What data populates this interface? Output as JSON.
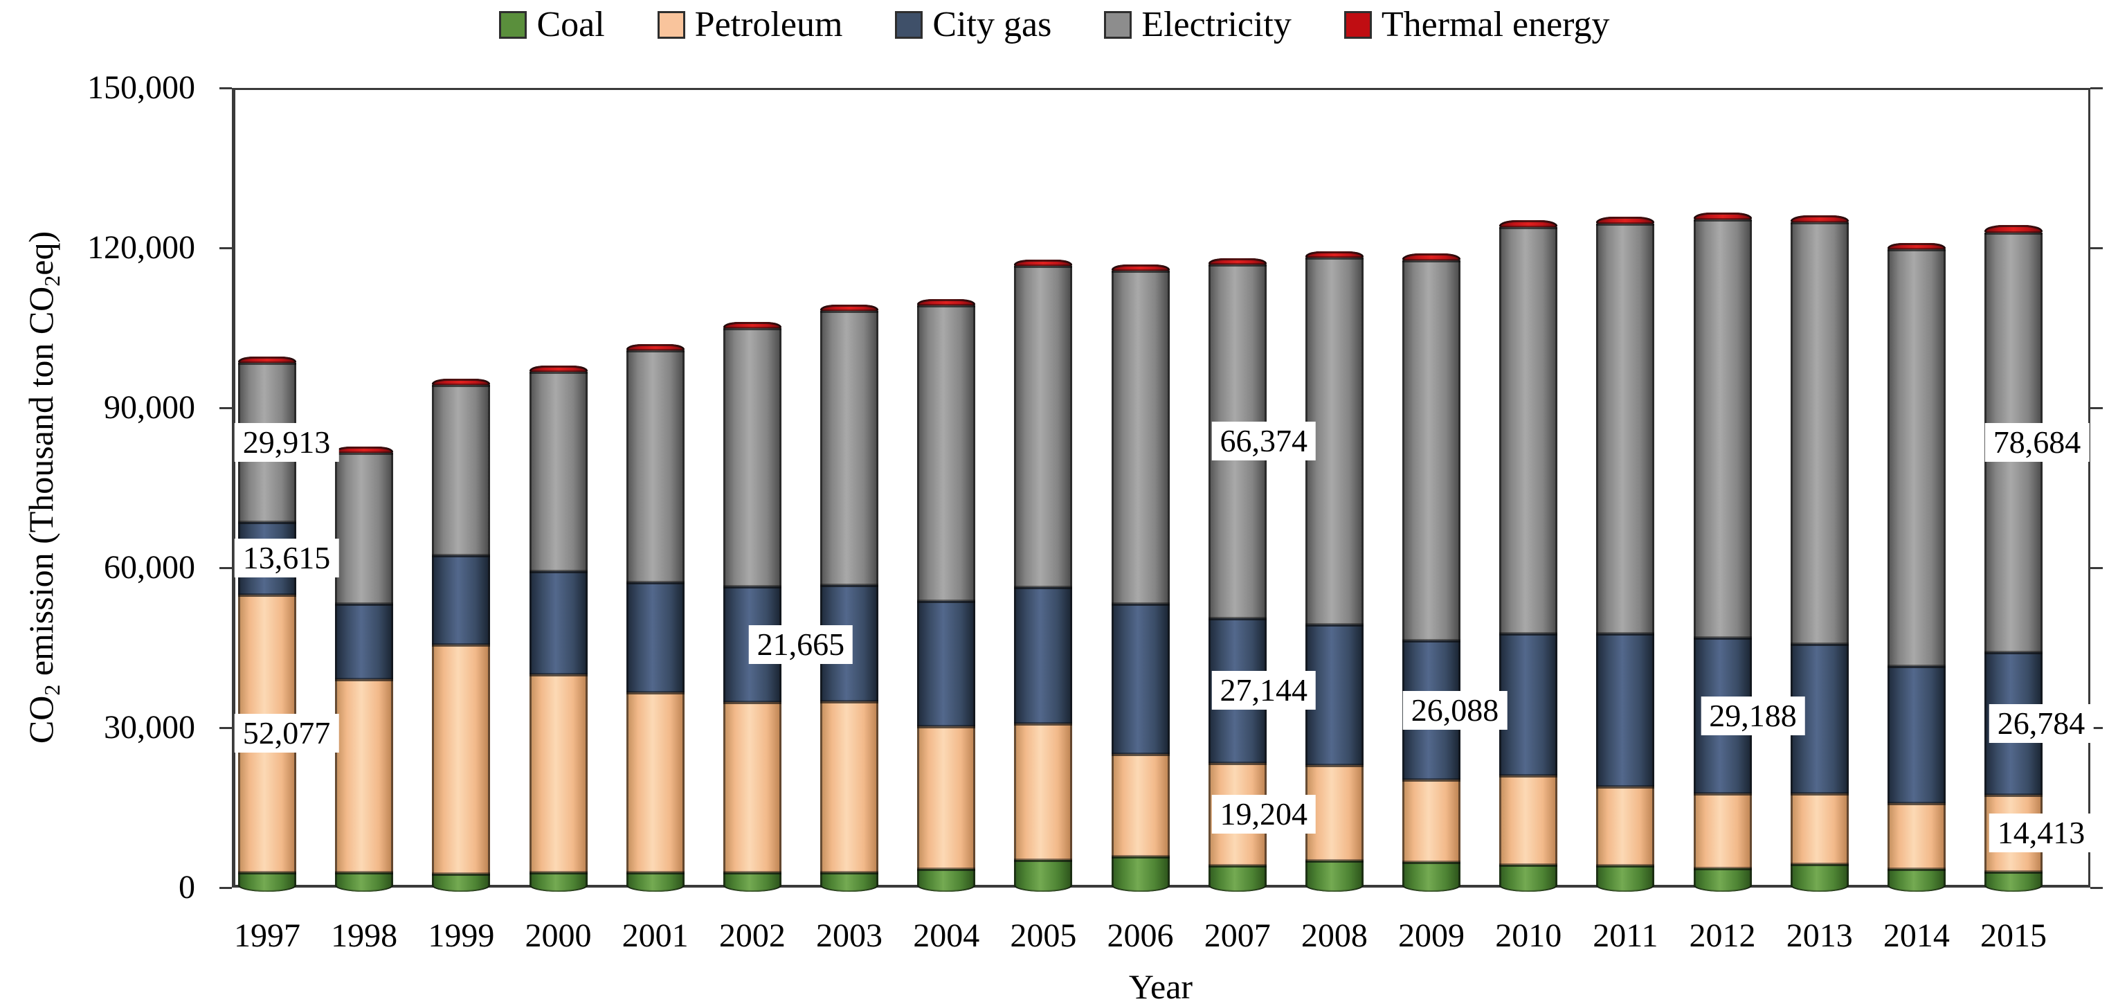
{
  "figure": {
    "x_axis_title": "Year",
    "y_axis_title_parts": {
      "p1": "CO",
      "s1": "2",
      "p2": " emission (Thousand ton CO",
      "s2": "2",
      "p3": "eq)"
    },
    "y_tick_labels": [
      "150,000",
      "120,000",
      "90,000",
      "60,000",
      "30,000",
      "0"
    ],
    "background_color": "#ffffff",
    "axis_color": "#3a3a3a",
    "text_color": "#000000"
  },
  "chart_data": {
    "type": "bar",
    "subtype": "stacked-vertical-3d",
    "title": "",
    "xlabel": "Year",
    "ylabel": "CO2 emission (Thousand ton CO2eq)",
    "ylim": [
      0,
      150000
    ],
    "y_tick_step": 30000,
    "grid": false,
    "legend_position": "top",
    "categories": [
      1997,
      1998,
      1999,
      2000,
      2001,
      2002,
      2003,
      2004,
      2005,
      2006,
      2007,
      2008,
      2009,
      2010,
      2011,
      2012,
      2013,
      2014,
      2015
    ],
    "series": [
      {
        "name": "Coal",
        "key": "coal",
        "color": "#5a8f3c",
        "values": [
          2900,
          2800,
          2600,
          2800,
          2900,
          2900,
          2900,
          3500,
          5200,
          5800,
          4200,
          5100,
          4800,
          4300,
          4200,
          3700,
          4400,
          3500,
          3000
        ]
      },
      {
        "name": "Petroleum",
        "key": "petroleum",
        "color": "#f9c49c",
        "values": [
          52077,
          36300,
          43000,
          37200,
          33700,
          31900,
          32000,
          26800,
          25600,
          19300,
          19204,
          17950,
          15460,
          16800,
          14800,
          13950,
          13250,
          12340,
          14413
        ]
      },
      {
        "name": "City gas",
        "key": "city_gas",
        "color": "#3f5069",
        "values": [
          13615,
          14200,
          16700,
          19300,
          20700,
          21665,
          21900,
          23500,
          25500,
          28100,
          27144,
          26250,
          26088,
          26600,
          28650,
          29188,
          28050,
          25760,
          26784
        ]
      },
      {
        "name": "Electricity",
        "key": "electricity",
        "color": "#8d8d8d",
        "values": [
          29913,
          28200,
          32000,
          37500,
          43500,
          48500,
          51400,
          55400,
          60300,
          62500,
          66374,
          68900,
          71350,
          76200,
          76850,
          78450,
          79100,
          78100,
          78684
        ]
      },
      {
        "name": "Thermal energy",
        "key": "thermal",
        "color": "#c00d12",
        "values": [
          500,
          600,
          700,
          800,
          900,
          950,
          900,
          900,
          1000,
          1100,
          1000,
          1200,
          1200,
          1300,
          1300,
          1300,
          1300,
          1250,
          1400
        ]
      }
    ],
    "data_labels": [
      {
        "year": 1997,
        "series": "petroleum",
        "text": "52,077",
        "dx": 28
      },
      {
        "year": 1997,
        "series": "city_gas",
        "text": "13,615",
        "dx": 28
      },
      {
        "year": 1997,
        "series": "electricity",
        "text": "29,913",
        "dx": 28
      },
      {
        "year": 2002,
        "series": "city_gas",
        "text": "21,665",
        "dx": 70
      },
      {
        "year": 2007,
        "series": "petroleum",
        "text": "19,204",
        "dx": 38
      },
      {
        "year": 2007,
        "series": "city_gas",
        "text": "27,144",
        "dx": 38
      },
      {
        "year": 2007,
        "series": "electricity",
        "text": "66,374",
        "dx": 38
      },
      {
        "year": 2009,
        "series": "city_gas",
        "text": "26,088",
        "dx": 34
      },
      {
        "year": 2012,
        "series": "city_gas",
        "text": "29,188",
        "dx": 44
      },
      {
        "year": 2015,
        "series": "petroleum",
        "text": "14,413",
        "dx": 40
      },
      {
        "year": 2015,
        "series": "city_gas",
        "text": "26,784",
        "dx": 40
      },
      {
        "year": 2015,
        "series": "electricity",
        "text": "78,684",
        "dx": 34
      }
    ]
  }
}
